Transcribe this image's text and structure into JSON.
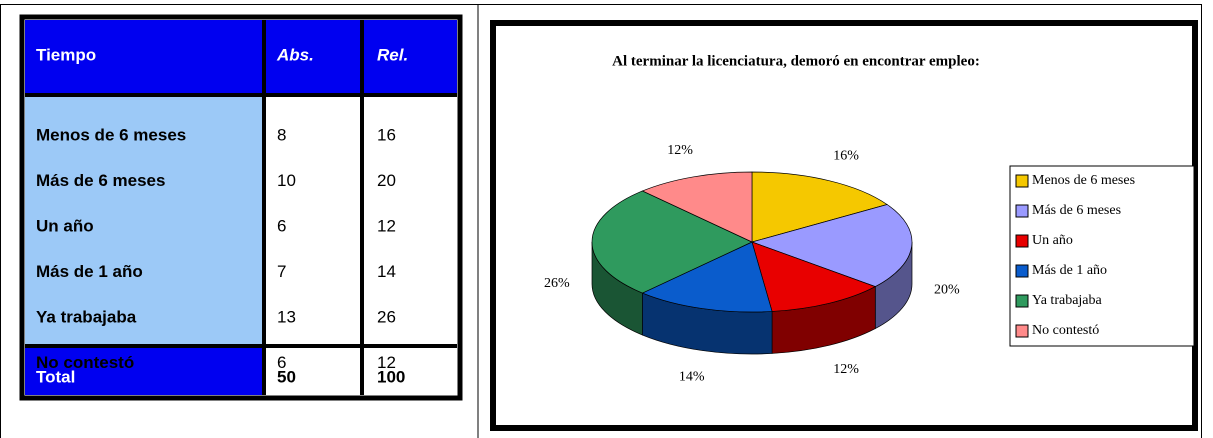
{
  "table": {
    "header": [
      "Tiempo",
      "Abs.",
      "Rel."
    ],
    "rows": [
      [
        "Menos de 6 meses",
        8,
        16
      ],
      [
        "Más de 6 meses",
        10,
        20
      ],
      [
        "Un año",
        6,
        12
      ],
      [
        "Más de 1 año",
        7,
        14
      ],
      [
        "Ya trabajaba",
        13,
        26
      ],
      [
        "No contestó",
        6,
        12
      ]
    ],
    "total": [
      "Total",
      50,
      100
    ]
  },
  "chart_data": {
    "type": "pie",
    "title": "Al terminar la licenciatura, demoró en encontrar empleo:",
    "categories": [
      "Menos de 6 meses",
      "Más de 6 meses",
      "Un año",
      "Más de 1 año",
      "Ya trabajaba",
      "No contestó"
    ],
    "values": [
      16,
      20,
      12,
      14,
      26,
      12
    ],
    "value_labels": [
      "16%",
      "20%",
      "12%",
      "14%",
      "26%",
      "12%"
    ],
    "colors": [
      "#f5c800",
      "#9a9aff",
      "#e80000",
      "#0a5ccc",
      "#2f9a5e",
      "#ff8a8a"
    ]
  }
}
